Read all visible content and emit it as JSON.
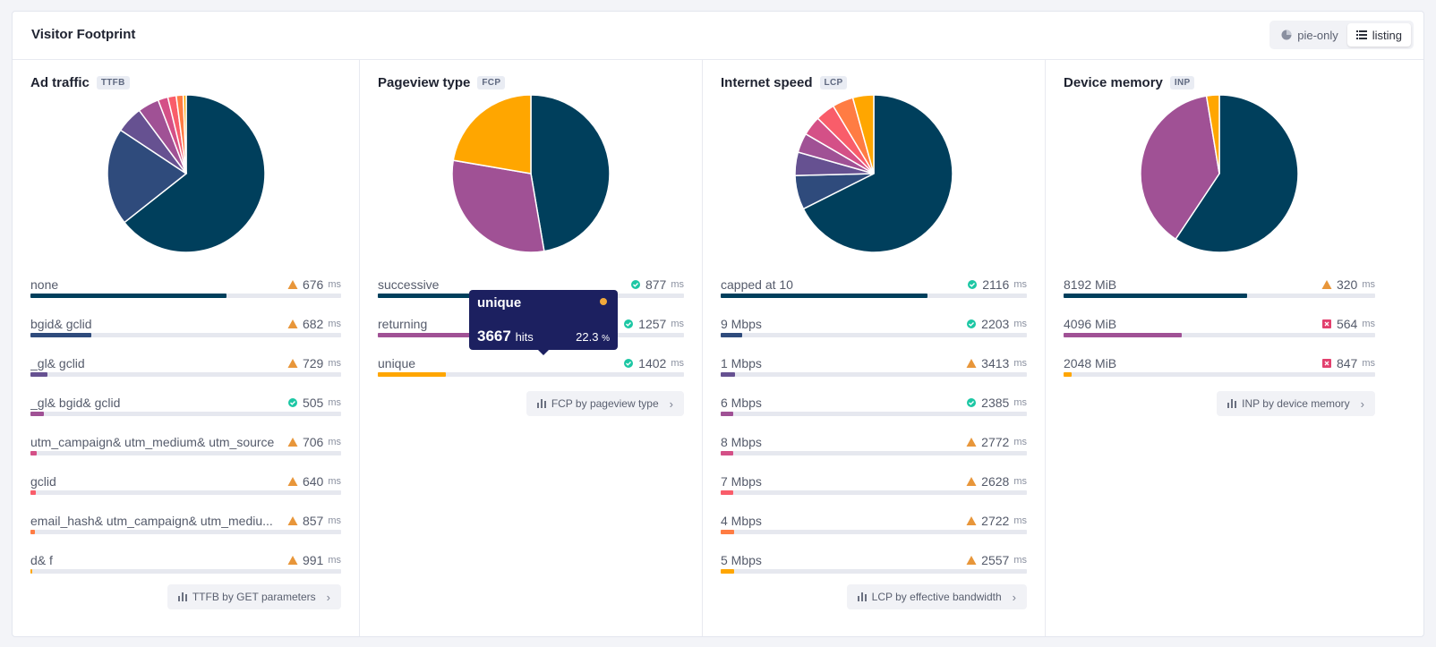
{
  "card": {
    "title": "Visitor Footprint",
    "toggle": [
      {
        "label": "pie-only",
        "icon": "pie-chart-icon",
        "active": false
      },
      {
        "label": "listing",
        "icon": "list-icon",
        "active": true
      }
    ]
  },
  "colors": {
    "warn": "#e8963a",
    "good": "#1cc7a4",
    "poor": "#e2406e"
  },
  "panels": [
    {
      "title": "Ad traffic",
      "badge": "TTFB",
      "footer": "TTFB by GET parameters",
      "rows": [
        {
          "label": "none",
          "value": "676",
          "unit": "ms",
          "status": "warn",
          "share": 0.632,
          "color": "#003f5c"
        },
        {
          "label": "bgid& gclid",
          "value": "682",
          "unit": "ms",
          "status": "warn",
          "share": 0.196,
          "color": "#2f4b7c"
        },
        {
          "label": "_gl& gclid",
          "value": "729",
          "unit": "ms",
          "status": "warn",
          "share": 0.054,
          "color": "#665191"
        },
        {
          "label": "_gl& bgid& gclid",
          "value": "505",
          "unit": "ms",
          "status": "good",
          "share": 0.043,
          "color": "#a05195"
        },
        {
          "label": "utm_campaign& utm_medium& utm_source",
          "value": "706",
          "unit": "ms",
          "status": "warn",
          "share": 0.02,
          "color": "#d45087"
        },
        {
          "label": "gclid",
          "value": "640",
          "unit": "ms",
          "status": "warn",
          "share": 0.017,
          "color": "#f95d6a"
        },
        {
          "label": "email_hash& utm_campaign& utm_mediu...",
          "value": "857",
          "unit": "ms",
          "status": "warn",
          "share": 0.014,
          "color": "#ff7c43"
        },
        {
          "label": "d& f",
          "value": "991",
          "unit": "ms",
          "status": "warn",
          "share": 0.006,
          "color": "#ffa600"
        }
      ]
    },
    {
      "title": "Pageview type",
      "badge": "FCP",
      "footer": "FCP by pageview type",
      "rows": [
        {
          "label": "successive",
          "value": "877",
          "unit": "ms",
          "status": "good",
          "share": 0.473,
          "color": "#003f5c"
        },
        {
          "label": "returning",
          "value": "1257",
          "unit": "ms",
          "status": "good",
          "share": 0.304,
          "color": "#a05195"
        },
        {
          "label": "unique",
          "value": "1402",
          "unit": "ms",
          "status": "good",
          "share": 0.223,
          "color": "#ffa600"
        }
      ],
      "tooltip": {
        "title": "unique",
        "hits": "3667",
        "hits_label": "hits",
        "pct": "22.3",
        "pct_unit": "%"
      }
    },
    {
      "title": "Internet speed",
      "badge": "LCP",
      "footer": "LCP by effective bandwidth",
      "rows": [
        {
          "label": "capped at 10",
          "value": "2116",
          "unit": "ms",
          "status": "good",
          "share": 0.676,
          "color": "#003f5c"
        },
        {
          "label": "9 Mbps",
          "value": "2203",
          "unit": "ms",
          "status": "good",
          "share": 0.07,
          "color": "#2f4b7c"
        },
        {
          "label": "1 Mbps",
          "value": "3413",
          "unit": "ms",
          "status": "warn",
          "share": 0.048,
          "color": "#665191"
        },
        {
          "label": "6 Mbps",
          "value": "2385",
          "unit": "ms",
          "status": "good",
          "share": 0.04,
          "color": "#a05195"
        },
        {
          "label": "8 Mbps",
          "value": "2772",
          "unit": "ms",
          "status": "warn",
          "share": 0.04,
          "color": "#d45087"
        },
        {
          "label": "7 Mbps",
          "value": "2628",
          "unit": "ms",
          "status": "warn",
          "share": 0.04,
          "color": "#f95d6a"
        },
        {
          "label": "4 Mbps",
          "value": "2722",
          "unit": "ms",
          "status": "warn",
          "share": 0.043,
          "color": "#ff7c43"
        },
        {
          "label": "5 Mbps",
          "value": "2557",
          "unit": "ms",
          "status": "warn",
          "share": 0.043,
          "color": "#ffa600"
        }
      ]
    },
    {
      "title": "Device memory",
      "badge": "INP",
      "footer": "INP by device memory",
      "rows": [
        {
          "label": "8192 MiB",
          "value": "320",
          "unit": "ms",
          "status": "warn",
          "share": 0.59,
          "color": "#003f5c"
        },
        {
          "label": "4096 MiB",
          "value": "564",
          "unit": "ms",
          "status": "poor",
          "share": 0.378,
          "color": "#a05195"
        },
        {
          "label": "2048 MiB",
          "value": "847",
          "unit": "ms",
          "status": "poor",
          "share": 0.026,
          "color": "#ffa600"
        }
      ]
    }
  ]
}
